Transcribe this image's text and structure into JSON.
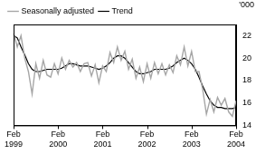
{
  "chart_data": {
    "type": "line",
    "ylabel": "'000",
    "categories": [
      "Feb 1999",
      null,
      null,
      null,
      null,
      null,
      null,
      null,
      null,
      null,
      null,
      null,
      "Feb 2000",
      null,
      null,
      null,
      null,
      null,
      null,
      null,
      null,
      null,
      null,
      null,
      "Feb 2001",
      null,
      null,
      null,
      null,
      null,
      null,
      null,
      null,
      null,
      null,
      null,
      "Feb 2002",
      null,
      null,
      null,
      null,
      null,
      null,
      null,
      null,
      null,
      null,
      null,
      "Feb 2003",
      null,
      null,
      null,
      null,
      null,
      null,
      null,
      null,
      null,
      null,
      null,
      "Feb 2004"
    ],
    "series": [
      {
        "name": "Trend",
        "color": "#000000",
        "line_style": "solid",
        "values": [
          22,
          21.8,
          21,
          20.3,
          19.5,
          19,
          18.8,
          18.8,
          18.9,
          19,
          19,
          19,
          19,
          19.1,
          19.3,
          19.5,
          19.5,
          19.4,
          19.3,
          19.3,
          19.3,
          19.2,
          19.1,
          19,
          19.1,
          19.3,
          19.6,
          20,
          20.2,
          20.2,
          20,
          19.6,
          19.2,
          18.8,
          18.6,
          18.6,
          18.7,
          18.8,
          19,
          19,
          19,
          19,
          19.1,
          19.3,
          19.6,
          19.8,
          20,
          19.8,
          19.5,
          19,
          18.3,
          17.5,
          16.8,
          16.2,
          15.8,
          15.6,
          15.6,
          15.5,
          15.5,
          15.5,
          15.6
        ]
      },
      {
        "name": "Seasonally adjusted",
        "color": "#a6a6a6",
        "line_style": "solid",
        "values": [
          22.2,
          21,
          22,
          20,
          18.8,
          16.8,
          19.5,
          18.2,
          19.8,
          18.5,
          18.3,
          19.5,
          18.6,
          20,
          19,
          19.8,
          19.2,
          19.6,
          18.8,
          19.5,
          19.6,
          18.4,
          19.4,
          17.8,
          19.3,
          18.8,
          20.5,
          19.6,
          21,
          19.8,
          20.6,
          19,
          19.9,
          18.2,
          19.2,
          17.9,
          19.5,
          18.2,
          19.6,
          18.6,
          19.5,
          18.5,
          19.4,
          18.7,
          20.2,
          19.4,
          21,
          19.3,
          20.6,
          18.8,
          18.8,
          17.2,
          15,
          16.3,
          15.2,
          16.5,
          15.8,
          16.4,
          15.2,
          14.8,
          16.2
        ]
      }
    ],
    "ylim": [
      14,
      23
    ],
    "yticks": [
      14,
      16,
      18,
      20,
      22
    ],
    "grid": false,
    "legend": "upper left"
  }
}
